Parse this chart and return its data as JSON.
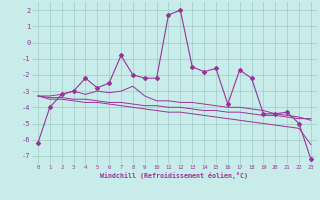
{
  "x_values": [
    0,
    1,
    2,
    3,
    4,
    5,
    6,
    7,
    8,
    9,
    10,
    11,
    12,
    13,
    14,
    15,
    16,
    17,
    18,
    19,
    20,
    21,
    22,
    23
  ],
  "y_main": [
    -6.2,
    -4.0,
    -3.2,
    -3.0,
    -2.2,
    -2.8,
    -2.5,
    -0.8,
    -2.0,
    -2.2,
    -2.2,
    1.7,
    2.0,
    -1.5,
    -1.8,
    -1.6,
    -3.8,
    -1.7,
    -2.2,
    -4.4,
    -4.4,
    -4.3,
    -5.0,
    -7.2
  ],
  "y_line1": [
    -3.3,
    -3.3,
    -3.2,
    -3.0,
    -3.2,
    -3.0,
    -3.1,
    -3.0,
    -2.7,
    -3.3,
    -3.6,
    -3.6,
    -3.7,
    -3.7,
    -3.8,
    -3.9,
    -4.0,
    -4.0,
    -4.1,
    -4.2,
    -4.4,
    -4.5,
    -4.6,
    -4.8
  ],
  "y_line2": [
    -3.3,
    -3.4,
    -3.4,
    -3.5,
    -3.5,
    -3.6,
    -3.7,
    -3.7,
    -3.8,
    -3.9,
    -3.9,
    -4.0,
    -4.0,
    -4.1,
    -4.2,
    -4.2,
    -4.3,
    -4.3,
    -4.4,
    -4.5,
    -4.5,
    -4.6,
    -4.7,
    -4.7
  ],
  "y_line3": [
    -3.3,
    -3.5,
    -3.5,
    -3.6,
    -3.7,
    -3.7,
    -3.8,
    -3.9,
    -4.0,
    -4.1,
    -4.2,
    -4.3,
    -4.3,
    -4.4,
    -4.5,
    -4.6,
    -4.7,
    -4.8,
    -4.9,
    -5.0,
    -5.1,
    -5.2,
    -5.3,
    -6.3
  ],
  "color_main": "#993399",
  "color_lines": "#993399",
  "bg_color": "#c8ecea",
  "grid_color": "#a0ccc8",
  "xlabel": "Windchill (Refroidissement éolien,°C)",
  "ylim": [
    -7.5,
    2.5
  ],
  "xlim": [
    -0.5,
    23.5
  ],
  "yticks": [
    2,
    1,
    0,
    -1,
    -2,
    -3,
    -4,
    -5,
    -6,
    -7
  ],
  "xticks": [
    0,
    1,
    2,
    3,
    4,
    5,
    6,
    7,
    8,
    9,
    10,
    11,
    12,
    13,
    14,
    15,
    16,
    17,
    18,
    19,
    20,
    21,
    22,
    23
  ]
}
